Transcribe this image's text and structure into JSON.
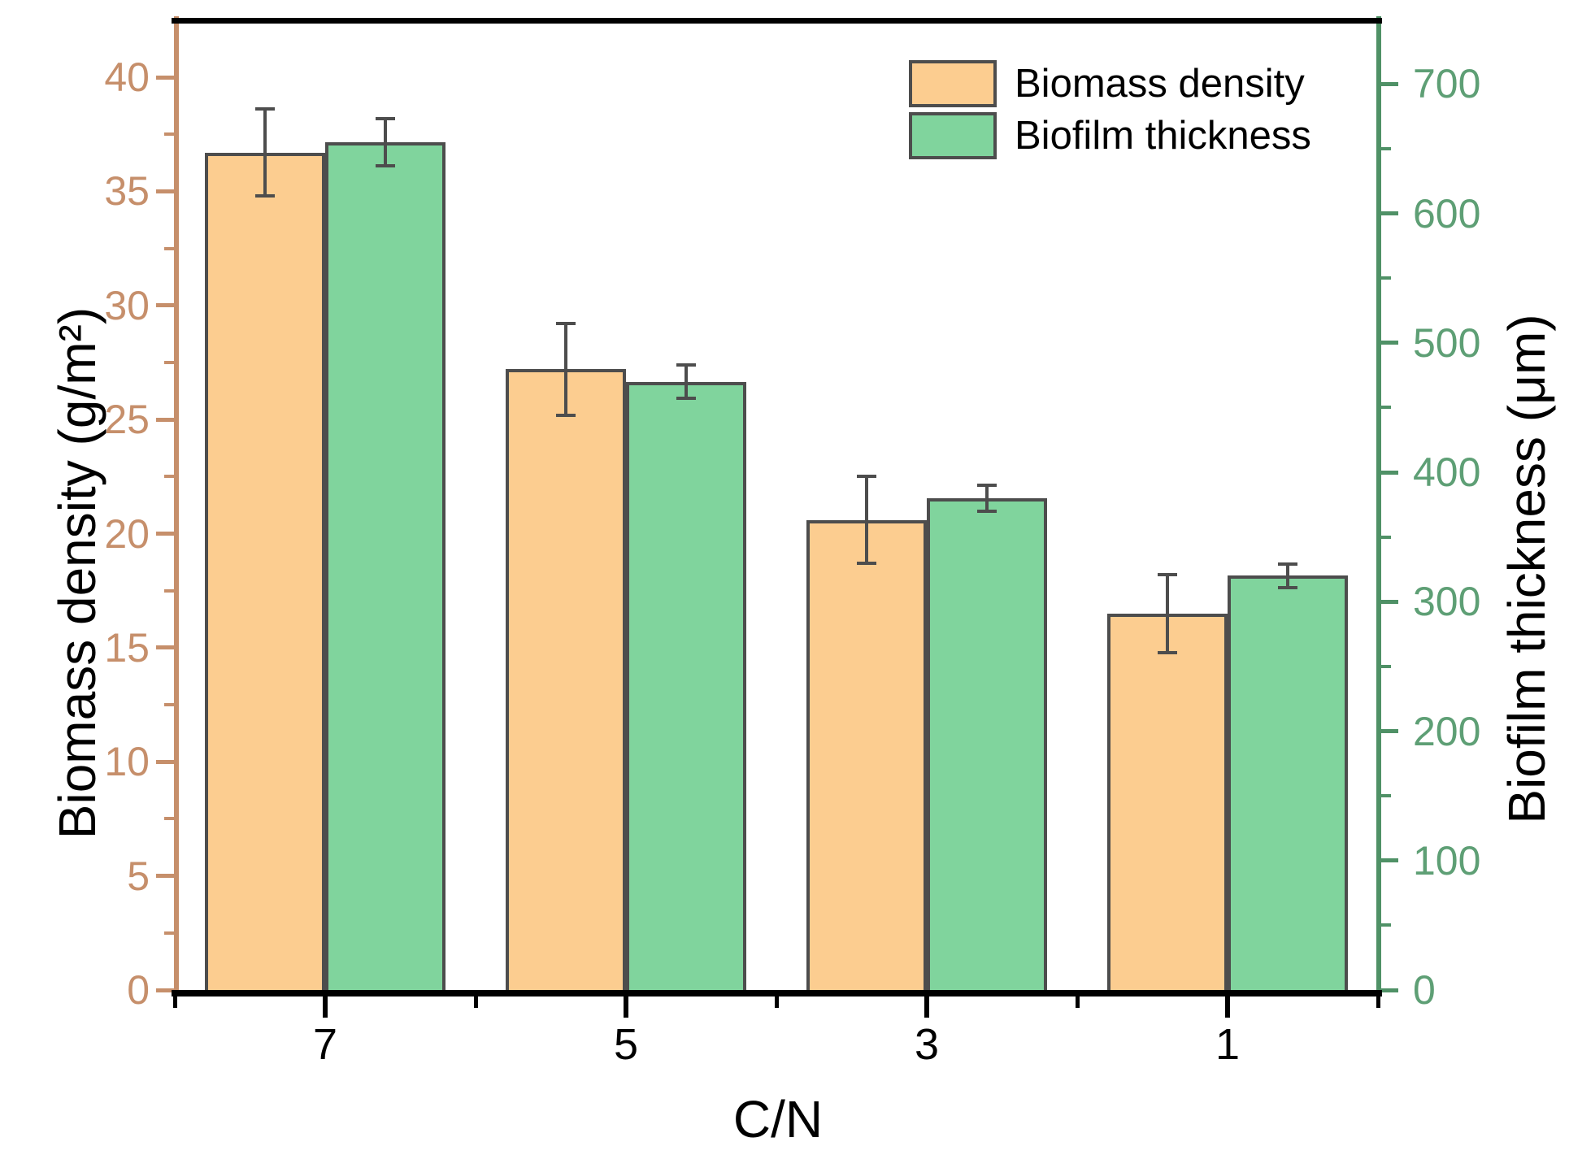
{
  "chart_data": {
    "type": "bar",
    "title": "",
    "categories": [
      "7",
      "5",
      "3",
      "1"
    ],
    "xlabel": "C/N",
    "series": [
      {
        "name": "Biomass density",
        "axis": "left",
        "values": [
          36.7,
          27.2,
          20.6,
          16.5
        ],
        "errors": [
          1.9,
          2.0,
          1.9,
          1.7
        ],
        "fill": "#FCCD90"
      },
      {
        "name": "Biofilm thickness",
        "axis": "right",
        "values": [
          655,
          470,
          380,
          320
        ],
        "errors": [
          18,
          13,
          10,
          9
        ],
        "fill": "#80D49D"
      }
    ],
    "axes": {
      "left": {
        "label": "Biomass density (g/m²)",
        "ticks": [
          0,
          5,
          10,
          15,
          20,
          25,
          30,
          35,
          40
        ],
        "minor_step": 2.5,
        "range": [
          0,
          42.6
        ],
        "color": "#C68F6B"
      },
      "right": {
        "label": "Biofilm thickness (μm)",
        "ticks": [
          0,
          100,
          200,
          300,
          400,
          500,
          600,
          700
        ],
        "minor_step": 50,
        "range": [
          0,
          751
        ],
        "color": "#5E9F75",
        "line_color": "#4F9166"
      },
      "bottom": {
        "color": "#000000"
      }
    },
    "legend": {
      "position": "top-right",
      "entries": [
        "Biomass density",
        "Biofilm thickness"
      ]
    },
    "grid": false,
    "bar_edge_color": "#4d4d4d",
    "error_bar_color": "#4d4d4d"
  }
}
